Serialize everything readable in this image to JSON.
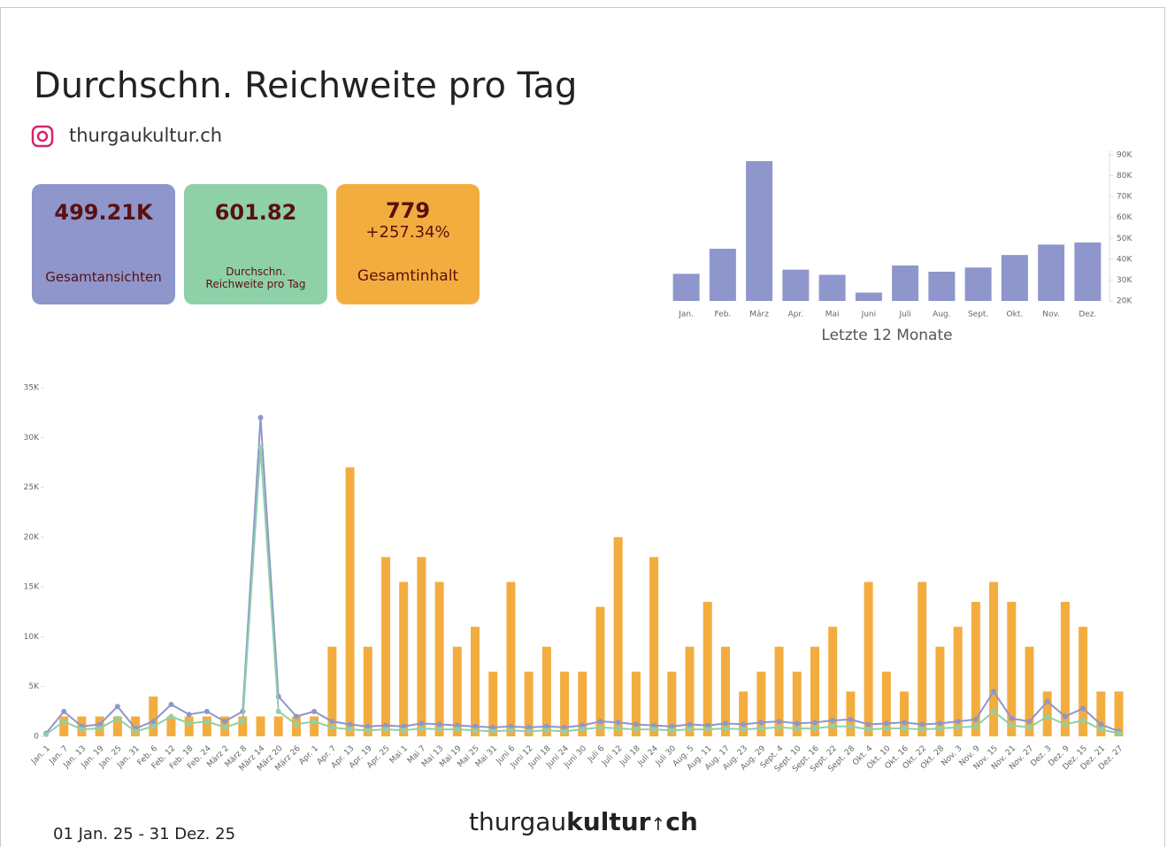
{
  "header": {
    "title": "Durchschn. Reichweite pro Tag",
    "account": "thurgaukultur.ch"
  },
  "kpis": [
    {
      "value": "499.21K",
      "label": "Gesamtansichten",
      "color": "#8e96cc"
    },
    {
      "value": "601.82",
      "label": "Durchschn. Reichweite pro Tag",
      "color": "#8ed0a8"
    },
    {
      "value": "779",
      "change": "+257.34%",
      "label": "Gesamtinhalt",
      "color": "#f3ad3f"
    }
  ],
  "chart_data": [
    {
      "type": "bar",
      "title": "Letzte 12 Monate",
      "categories": [
        "Jan.",
        "Feb.",
        "März",
        "Apr.",
        "Mai",
        "Juni",
        "Juli",
        "Aug.",
        "Sept.",
        "Okt.",
        "Nov.",
        "Dez."
      ],
      "values": [
        33000,
        45000,
        87000,
        35000,
        32500,
        24000,
        37000,
        34000,
        36000,
        42000,
        47000,
        48000
      ],
      "color": "#8e96cc",
      "ylim": [
        20000,
        90000
      ],
      "yticks": [
        {
          "value": 20000,
          "label": "20K"
        },
        {
          "value": 30000,
          "label": "30K"
        },
        {
          "value": 40000,
          "label": "40K"
        },
        {
          "value": 50000,
          "label": "50K"
        },
        {
          "value": 60000,
          "label": "60K"
        },
        {
          "value": 70000,
          "label": "70K"
        },
        {
          "value": 80000,
          "label": "80K"
        },
        {
          "value": 90000,
          "label": "90K"
        }
      ]
    },
    {
      "type": "bar-line",
      "categories": [
        "Jan. 1",
        "Jan. 7",
        "Jan. 13",
        "Jan. 19",
        "Jan. 25",
        "Jan. 31",
        "Feb. 6",
        "Feb. 12",
        "Feb. 18",
        "Feb. 24",
        "März 2",
        "März 8",
        "März 14",
        "März 20",
        "März 26",
        "Apr. 1",
        "Apr. 7",
        "Apr. 13",
        "Apr. 19",
        "Apr. 25",
        "Mai 1",
        "Mai 7",
        "Mai 13",
        "Mai 19",
        "Mai 25",
        "Mai 31",
        "Juni 6",
        "Juni 12",
        "Juni 18",
        "Juni 24",
        "Juni 30",
        "Juli 6",
        "Juli 12",
        "Juli 18",
        "Juli 24",
        "Juli 30",
        "Aug. 5",
        "Aug. 11",
        "Aug. 17",
        "Aug. 23",
        "Aug. 29",
        "Sept. 4",
        "Sept. 10",
        "Sept. 16",
        "Sept. 22",
        "Sept. 28",
        "Okt. 4",
        "Okt. 10",
        "Okt. 16",
        "Okt. 22",
        "Okt. 28",
        "Nov. 3",
        "Nov. 9",
        "Nov. 15",
        "Nov. 21",
        "Nov. 27",
        "Dez. 3",
        "Dez. 9",
        "Dez. 15",
        "Dez. 21",
        "Dez. 27"
      ],
      "series": [
        {
          "kind": "bar",
          "color": "#f3ad3f",
          "values": [
            0,
            2000,
            2000,
            2000,
            2000,
            2000,
            4000,
            2000,
            2000,
            2000,
            2000,
            2000,
            2000,
            2000,
            2000,
            2000,
            9000,
            27000,
            9000,
            18000,
            15500,
            18000,
            15500,
            9000,
            11000,
            6500,
            15500,
            6500,
            9000,
            6500,
            6500,
            13000,
            20000,
            6500,
            18000,
            6500,
            9000,
            13500,
            9000,
            4500,
            6500,
            9000,
            6500,
            9000,
            11000,
            4500,
            15500,
            6500,
            4500,
            15500,
            9000,
            11000,
            13500,
            15500,
            13500,
            9000,
            4500,
            13500,
            11000,
            4500,
            4500
          ]
        },
        {
          "kind": "line",
          "color": "#8e96cc",
          "values": [
            300,
            2500,
            1000,
            1200,
            3000,
            800,
            1500,
            3200,
            2200,
            2500,
            1500,
            2500,
            32000,
            4000,
            2000,
            2500,
            1500,
            1200,
            1000,
            1100,
            1000,
            1300,
            1200,
            1100,
            1000,
            900,
            1000,
            900,
            1000,
            900,
            1100,
            1500,
            1400,
            1200,
            1100,
            1000,
            1200,
            1100,
            1300,
            1200,
            1400,
            1500,
            1300,
            1400,
            1600,
            1700,
            1200,
            1300,
            1400,
            1200,
            1300,
            1500,
            1700,
            4500,
            1800,
            1500,
            3500,
            2000,
            2800,
            1200,
            500
          ]
        },
        {
          "kind": "line",
          "color": "#8ed0a8",
          "values": [
            200,
            1500,
            700,
            800,
            1800,
            500,
            1000,
            2000,
            1300,
            1500,
            900,
            1500,
            29000,
            2500,
            1200,
            1500,
            900,
            700,
            600,
            700,
            600,
            800,
            700,
            700,
            600,
            500,
            600,
            500,
            600,
            500,
            700,
            900,
            800,
            700,
            700,
            600,
            700,
            700,
            800,
            700,
            800,
            900,
            800,
            800,
            1000,
            1000,
            700,
            800,
            800,
            700,
            800,
            900,
            1000,
            2500,
            1100,
            900,
            2000,
            1200,
            1600,
            700,
            300
          ]
        }
      ],
      "ylim": [
        0,
        35000
      ],
      "yticks": [
        0,
        {
          "value": 5000,
          "label": "5K"
        },
        {
          "value": 10000,
          "label": "10K"
        },
        {
          "value": 15000,
          "label": "15K"
        },
        {
          "value": 20000,
          "label": "20K"
        },
        {
          "value": 25000,
          "label": "25K"
        },
        {
          "value": 30000,
          "label": "30K"
        },
        {
          "value": 35000,
          "label": "35K"
        }
      ]
    }
  ],
  "footer": {
    "date_range": "01 Jan. 25  - 31 Dez. 25",
    "logo": [
      "thurgau",
      "kultur",
      "ch"
    ]
  }
}
